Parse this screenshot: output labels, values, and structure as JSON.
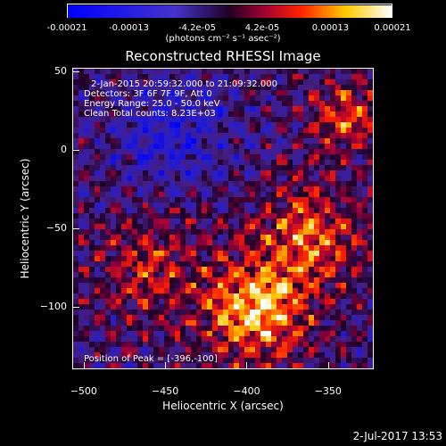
{
  "colorbar": {
    "ticks": [
      "-0.00021",
      "-0.00013",
      "-4.2e-05",
      "4.2e-05",
      "0.00013",
      "0.00021"
    ],
    "tick_values": [
      -0.00021,
      -0.00013,
      -4.2e-05,
      4.2e-05,
      0.00013,
      0.00021
    ],
    "unit": "(photons cm⁻² s⁻¹ asec⁻²)",
    "min": -0.00021,
    "max": 0.00021
  },
  "info": {
    "time_range": "2-Jan-2015 20:59:32.000 to 21:09:32.000",
    "detectors": "Detectors: 3F 6F 7F 9F, Att 0",
    "energy_range": "Energy Range: 25.0 - 50.0 keV",
    "method": "Clean    Total counts: 8.23E+03",
    "peak": "Position of Peak = [-396,-100]"
  },
  "timestamp": "2-Jul-2017 13:53",
  "chart_data": {
    "type": "heatmap",
    "title": "Reconstructed RHESSI Image",
    "xlabel": "Heliocentric X (arcsec)",
    "ylabel": "Heliocentric Y (arcsec)",
    "xlim": [
      -507,
      -322
    ],
    "ylim": [
      -140,
      52
    ],
    "xticks": [
      -500,
      -450,
      -400,
      -350
    ],
    "xtick_labels": [
      "−500",
      "−450",
      "−400",
      "−350"
    ],
    "yticks": [
      50,
      0,
      -50,
      -100
    ],
    "ytick_labels": [
      "50",
      "0",
      "−50",
      "−100"
    ],
    "peak_position": [
      -396,
      -100
    ],
    "colormap": "blue-purple-red-yellow-white",
    "grid": false
  }
}
